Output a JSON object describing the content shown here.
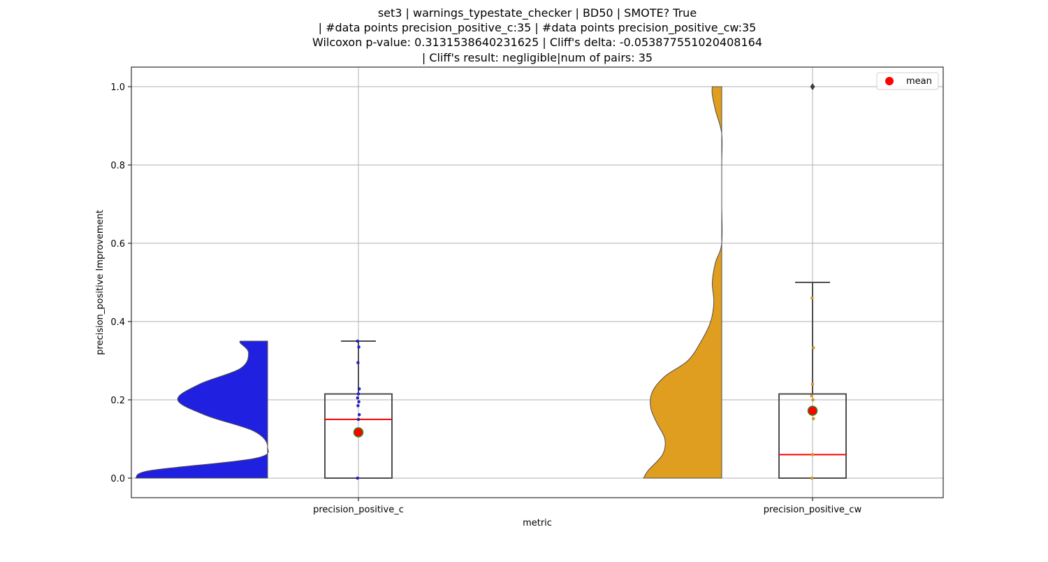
{
  "chart_data": {
    "type": "violin-box",
    "title_lines": [
      "set3 | warnings_typestate_checker | BD50 | SMOTE? True",
      "| #data points precision_positive_c:35 | #data points precision_positive_cw:35",
      "Wilcoxon p-value: 0.3131538640231625 | Cliff's delta: -0.053877551020408164",
      "| Cliff's result: negligible|num of pairs: 35"
    ],
    "xlabel": "metric",
    "ylabel": "precision_positive Improvement",
    "ylim": [
      -0.05,
      1.05
    ],
    "yticks": [
      0.0,
      0.2,
      0.4,
      0.6,
      0.8,
      1.0
    ],
    "ytick_labels": [
      "0.0",
      "0.2",
      "0.4",
      "0.6",
      "0.8",
      "1.0"
    ],
    "categories": [
      "precision_positive_c",
      "precision_positive_cw"
    ],
    "grid": true,
    "legend": {
      "position": "top-right",
      "entries": [
        {
          "label": "mean",
          "color": "#ff0000"
        }
      ]
    },
    "colors": {
      "c": "#2020e0",
      "cw": "#e09e20",
      "median": "#ff0000",
      "mean_fill": "#ff0000",
      "mean_edge": "#2e8b20",
      "box_edge": "#4d4d4d",
      "grid": "#b0b0b0"
    },
    "series": [
      {
        "category": "precision_positive_c",
        "color": "#2020e0",
        "box": {
          "q1": 0.0,
          "median": 0.15,
          "q3": 0.215,
          "whisker_low": 0.0,
          "whisker_high": 0.35
        },
        "mean": 0.117,
        "outliers": [],
        "points": [
          0.0,
          0.15,
          0.162,
          0.185,
          0.195,
          0.205,
          0.215,
          0.228,
          0.295,
          0.335,
          0.35
        ],
        "violin": {
          "ys": [
            0.0,
            0.02,
            0.05,
            0.08,
            0.12,
            0.16,
            0.2,
            0.24,
            0.28,
            0.32,
            0.345,
            0.35
          ],
          "widths": [
            0.97,
            0.85,
            0.1,
            0.0,
            0.1,
            0.45,
            0.66,
            0.5,
            0.2,
            0.14,
            0.2,
            0.2
          ]
        }
      },
      {
        "category": "precision_positive_cw",
        "color": "#e09e20",
        "box": {
          "q1": 0.0,
          "median": 0.06,
          "q3": 0.215,
          "whisker_low": 0.0,
          "whisker_high": 0.5
        },
        "mean": 0.172,
        "outliers": [
          1.0
        ],
        "points": [
          0.0,
          0.06,
          0.152,
          0.172,
          0.2,
          0.21,
          0.24,
          0.333,
          0.46
        ],
        "violin": {
          "ys": [
            0.0,
            0.02,
            0.06,
            0.1,
            0.14,
            0.18,
            0.22,
            0.26,
            0.3,
            0.35,
            0.4,
            0.45,
            0.5,
            0.55,
            0.6,
            0.7,
            0.8,
            0.88,
            0.94,
            0.98,
            1.0
          ],
          "widths": [
            0.99,
            0.93,
            0.75,
            0.72,
            0.82,
            0.9,
            0.88,
            0.72,
            0.43,
            0.26,
            0.14,
            0.1,
            0.12,
            0.08,
            0.0,
            0.0,
            0.0,
            0.0,
            0.08,
            0.12,
            0.12
          ]
        }
      }
    ]
  }
}
